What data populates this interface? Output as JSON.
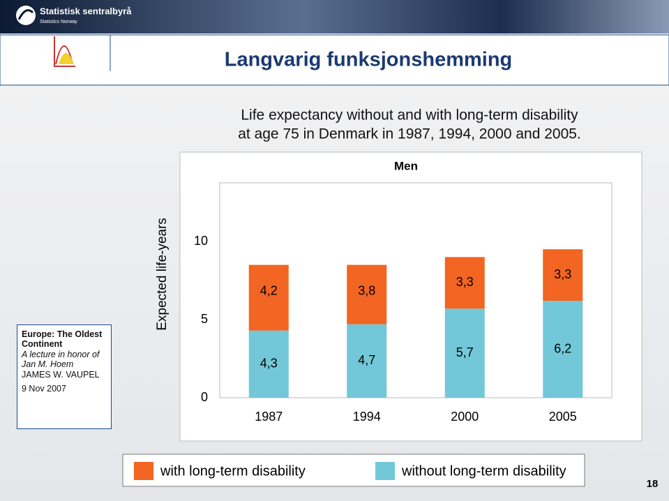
{
  "header": {
    "logo_name": "Statistisk sentralbyrå",
    "logo_subname": "Statistics Norway",
    "title": "Langvarig funksjonshemming"
  },
  "sidebar": {
    "heading": "Europe: The Oldest Continent",
    "subheading": "A lecture in honor of Jan M. Hoem",
    "author": "JAMES  W. VAUPEL",
    "date": "9 Nov 2007"
  },
  "page_number": "18",
  "chart_data": {
    "type": "stacked-bar",
    "subtitle": [
      "Life expectancy without and with long-term disability",
      "at age 75 in Denmark in 1987, 1994, 2000 and 2005."
    ],
    "title": "Men",
    "y_label": "Expected life-years",
    "categories": [
      "1987",
      "1994",
      "2000",
      "2005"
    ],
    "series": [
      {
        "name": "without long-term disability",
        "color": "#72c8d8",
        "values": [
          4.3,
          4.7,
          5.7,
          6.2
        ],
        "value_labels": [
          "4,3",
          "4,7",
          "5,7",
          "6,2"
        ]
      },
      {
        "name": "with long-term disability",
        "color": "#f26522",
        "values": [
          4.2,
          3.8,
          3.3,
          3.3
        ],
        "value_labels": [
          "4,2",
          "3,8",
          "3,3",
          "3,3"
        ]
      }
    ],
    "ylim": [
      0,
      14
    ],
    "yticks": [
      0,
      5,
      10
    ],
    "grid": false
  }
}
